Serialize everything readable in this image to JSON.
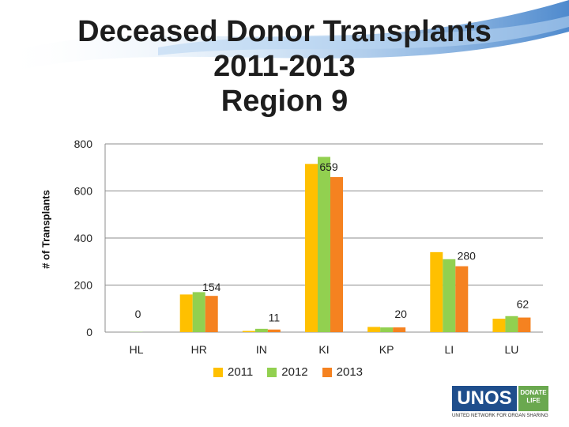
{
  "header": {
    "title_line1": "Deceased Donor Transplants",
    "title_line2": "2011-2013",
    "title_line3": "Region 9"
  },
  "colors": {
    "series_2011": "#FFC000",
    "series_2012": "#92D050",
    "series_2013": "#F58220",
    "swirl": "#4a90d9"
  },
  "logo": {
    "name": "UNOS",
    "tag": "DONATE LIFE",
    "subtitle": "UNITED NETWORK FOR ORGAN SHARING"
  },
  "chart_data": {
    "type": "bar",
    "title": "Deceased Donor Transplants 2011-2013 Region 9",
    "ylabel": "# of Transplants",
    "xlabel": "",
    "ylim": [
      0,
      800
    ],
    "yticks": [
      0,
      200,
      400,
      600,
      800
    ],
    "grid": true,
    "legend_position": "bottom",
    "categories": [
      "HL",
      "HR",
      "IN",
      "KI",
      "KP",
      "LI",
      "LU"
    ],
    "series": [
      {
        "name": "2011",
        "values": [
          0,
          160,
          5,
          715,
          22,
          340,
          57
        ]
      },
      {
        "name": "2012",
        "values": [
          1,
          170,
          14,
          745,
          20,
          310,
          68
        ]
      },
      {
        "name": "2013",
        "values": [
          0,
          154,
          11,
          659,
          20,
          280,
          62
        ]
      }
    ],
    "data_labels": [
      {
        "category": "HL",
        "series": "2013",
        "text": "0"
      },
      {
        "category": "HR",
        "series": "2013",
        "text": "154"
      },
      {
        "category": "IN",
        "series": "2013",
        "text": "11"
      },
      {
        "category": "KI",
        "series": "2013",
        "text": "659"
      },
      {
        "category": "KP",
        "series": "2013",
        "text": "20"
      },
      {
        "category": "LI",
        "series": "2013",
        "text": "280"
      },
      {
        "category": "LU",
        "series": "2013",
        "text": "62"
      }
    ]
  }
}
